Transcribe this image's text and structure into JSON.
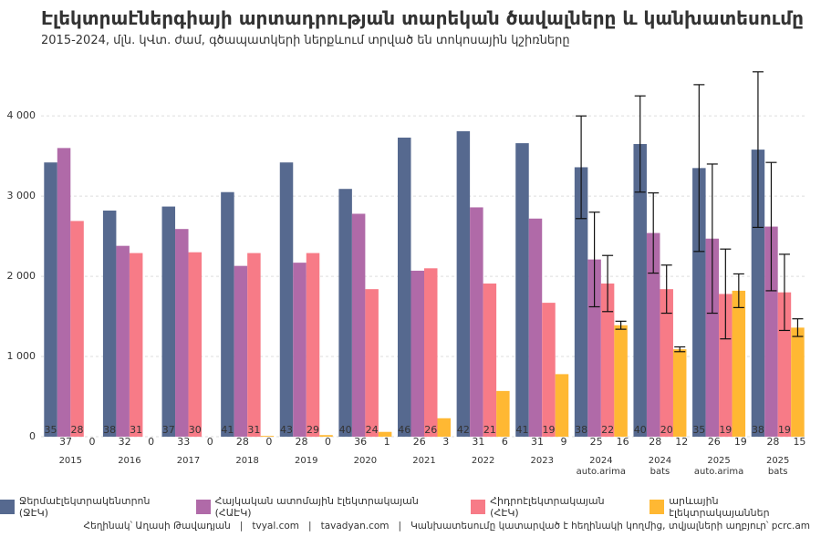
{
  "chart_data": {
    "type": "bar",
    "title": "Էլեկտրաէներգիայի արտադրության տարեկան ծավալները և կանխատեսումը",
    "subtitle": "2015-2024, մլն. կՎտ. ժամ, գծապատկերի ներքևում տրված են տոկոսային կշիռները",
    "caption": "Հեղինակ՝ Աղասի Թավադյան   |   tvyal.com   |   tavadyan.com   |   Կանխատեսումը կատարված է հեղինակի կողմից, տվյալների աղբյուր՝ pcrc.am",
    "categories": [
      "2015",
      "2016",
      "2017",
      "2018",
      "2019",
      "2020",
      "2021",
      "2022",
      "2023",
      "2024\nauto.arima",
      "2024\nbats",
      "2025\nauto.arima",
      "2025\nbats"
    ],
    "series": [
      {
        "name": "Ջերմաէլեկտրակենտրոն (ՋԷԿ)",
        "color": "#56698f",
        "values": [
          3420,
          2820,
          2870,
          3050,
          3420,
          3090,
          3730,
          3810,
          3660,
          3360,
          3650,
          3350,
          3580
        ],
        "errors": [
          null,
          null,
          null,
          null,
          null,
          null,
          null,
          null,
          null,
          640,
          600,
          1040,
          970
        ],
        "shares": [
          35,
          38,
          37,
          41,
          43,
          40,
          46,
          42,
          41,
          38,
          40,
          35,
          38
        ]
      },
      {
        "name": "Հայկական ատոմային էլեկտրակայան (ՀԱԷԿ)",
        "color": "#b06aa8",
        "values": [
          3600,
          2380,
          2590,
          2130,
          2170,
          2780,
          2070,
          2860,
          2720,
          2210,
          2540,
          2470,
          2620
        ],
        "errors": [
          null,
          null,
          null,
          null,
          null,
          null,
          null,
          null,
          null,
          590,
          500,
          930,
          800
        ],
        "shares": [
          37,
          32,
          33,
          28,
          28,
          36,
          26,
          31,
          31,
          25,
          28,
          26,
          28
        ]
      },
      {
        "name": "Հիդրոէլեկտրակայան (ՀԷԿ)",
        "color": "#f77b87",
        "values": [
          2690,
          2290,
          2300,
          2290,
          2290,
          1840,
          2100,
          1910,
          1670,
          1910,
          1840,
          1780,
          1800
        ],
        "errors": [
          null,
          null,
          null,
          null,
          null,
          null,
          null,
          null,
          null,
          350,
          300,
          560,
          475
        ],
        "shares": [
          28,
          31,
          30,
          31,
          29,
          24,
          26,
          21,
          19,
          22,
          20,
          19,
          19
        ]
      },
      {
        "name": "արևային էլեկտրակայաններ",
        "color": "#ffb833",
        "values": [
          0,
          0,
          0,
          10,
          20,
          60,
          230,
          570,
          780,
          1390,
          1090,
          1820,
          1360
        ],
        "errors": [
          null,
          null,
          null,
          null,
          null,
          null,
          null,
          null,
          null,
          50,
          30,
          210,
          110
        ],
        "shares": [
          0,
          0,
          0,
          0,
          0,
          1,
          3,
          6,
          9,
          16,
          12,
          19,
          15
        ]
      }
    ],
    "ylim": [
      0,
      4650
    ],
    "yticks": [
      0,
      {
        "value": 1000,
        "label": "1 000"
      },
      {
        "value": 2000,
        "label": "2 000"
      },
      {
        "value": 3000,
        "label": "3 000"
      },
      {
        "value": 4000,
        "label": "4 000"
      }
    ],
    "grid": true,
    "legend": "bottom"
  }
}
